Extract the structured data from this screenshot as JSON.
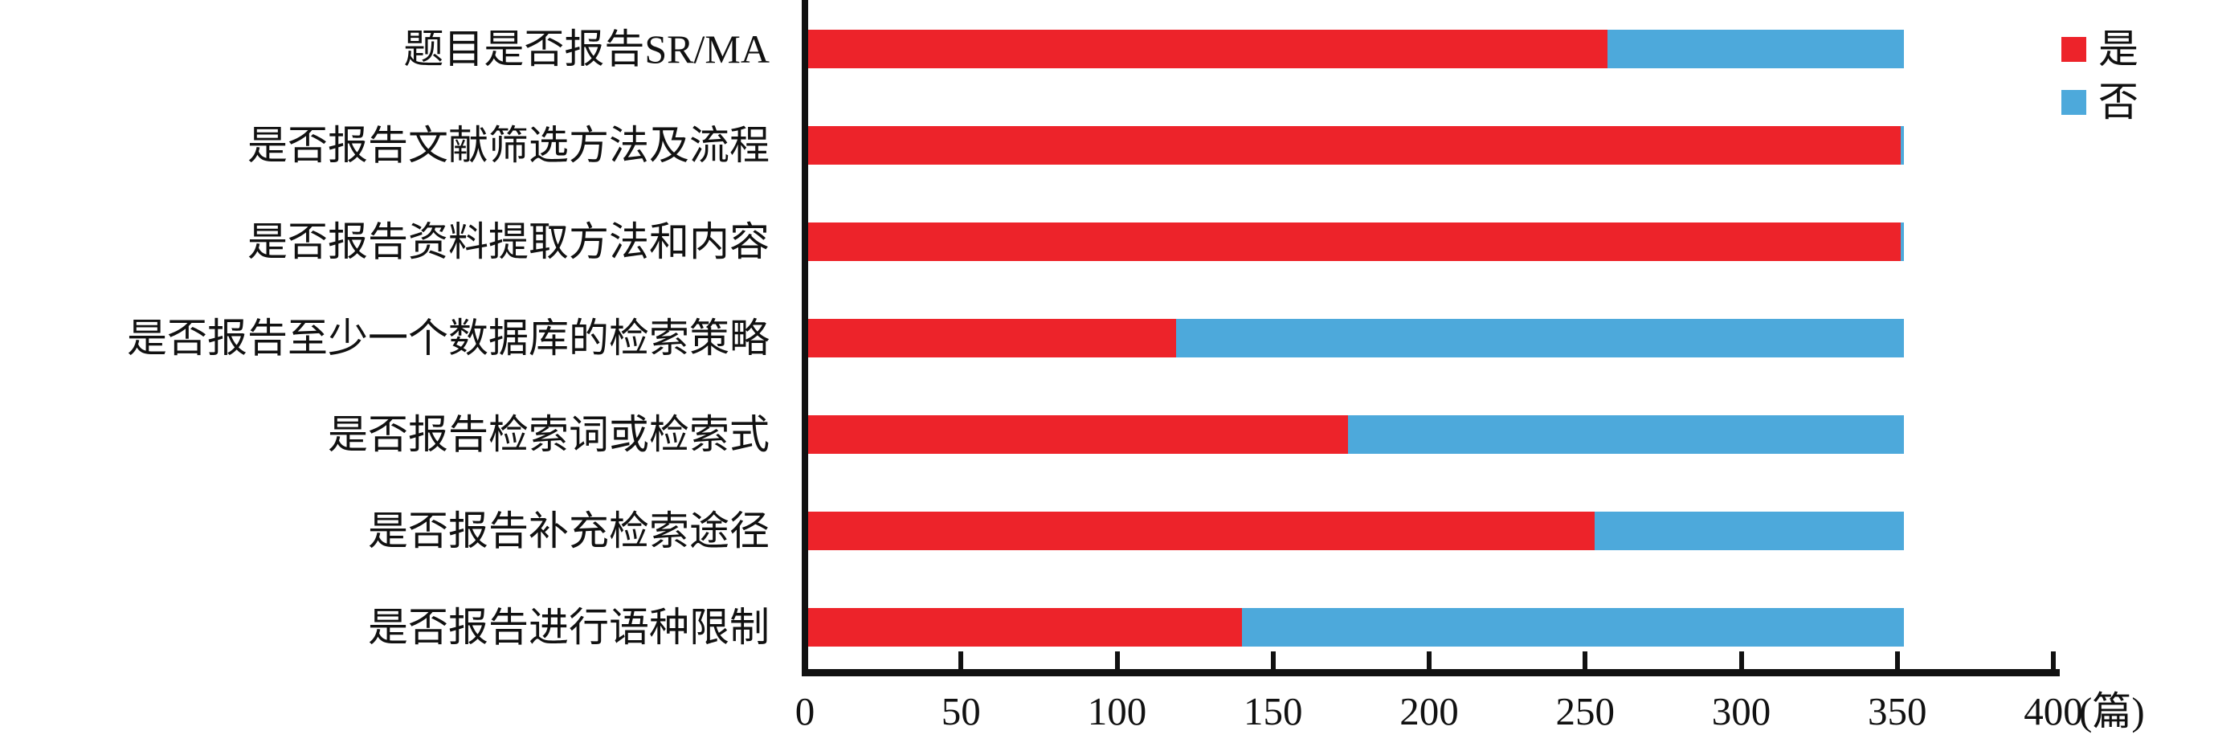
{
  "chart_data": {
    "type": "bar",
    "orientation": "horizontal",
    "stacked": true,
    "title": "",
    "xlabel": "",
    "ylabel": "",
    "grid": false,
    "legend_position": "top-right",
    "categories": [
      "题目是否报告SR/MA",
      "是否报告文献筛选方法及流程",
      "是否报告资料提取方法和内容",
      "是否报告至少一个数据库的检索策略",
      "是否报告检索词或检索式",
      "是否报告补充检索途径",
      "是否报告进行语种限制"
    ],
    "series": [
      {
        "name": "是",
        "color": "#ED232A",
        "values": [
          256,
          350,
          350,
          118,
          173,
          252,
          139
        ]
      },
      {
        "name": "否",
        "color": "#4DA9DB",
        "values": [
          95,
          1,
          1,
          233,
          178,
          99,
          212
        ]
      }
    ],
    "bar_totals": [
      351,
      351,
      351,
      351,
      351,
      351,
      351
    ],
    "x_axis": {
      "min": 0,
      "max": 400,
      "step": 50,
      "ticks": [
        0,
        50,
        100,
        150,
        200,
        250,
        300,
        350,
        400
      ],
      "unit_label": "(篇)"
    },
    "axis_color": "#111111"
  }
}
